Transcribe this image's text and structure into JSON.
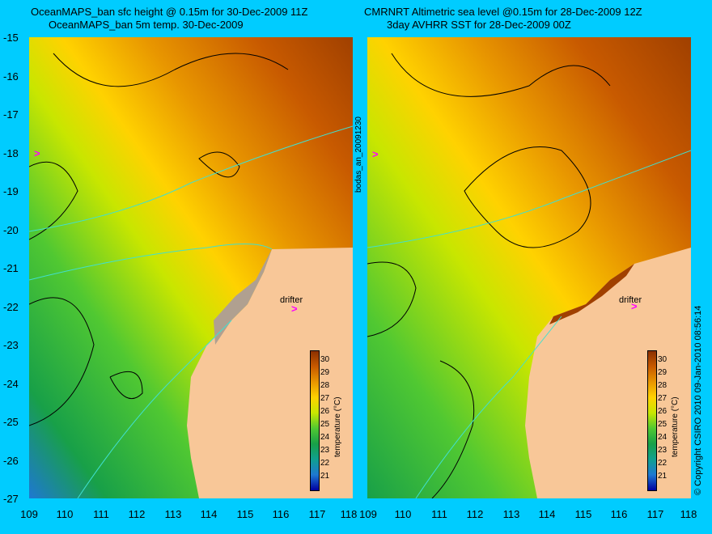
{
  "titles": {
    "left_line1": "OceanMAPS_ban sfc height @ 0.15m for 30-Dec-2009 11Z",
    "left_line2": "OceanMAPS_ban 5m temp. 30-Dec-2009",
    "right_line1": "CMRNRT Altimetric sea level  @0.15m  for 28-Dec-2009 12Z",
    "right_line2": "3day AVHRR SST for 28-Dec-2009 00Z"
  },
  "axes": {
    "y_ticks": [
      "-15",
      "-16",
      "-17",
      "-18",
      "-19",
      "-20",
      "-21",
      "-22",
      "-23",
      "-24",
      "-25",
      "-26",
      "-27"
    ],
    "x_ticks": [
      "109",
      "110",
      "111",
      "112",
      "113",
      "114",
      "115",
      "116",
      "117",
      "118"
    ],
    "lon_range": [
      109,
      118
    ],
    "lat_range": [
      -27,
      -15
    ]
  },
  "side_label": "bodas_an_20091230",
  "copyright": "© Copyright CSIRO 2010   09-Jan-2010 08:56:14",
  "drifter_label": "drifter",
  "colorbar": {
    "title": "temperature (°C)",
    "ticks": [
      "30",
      "29",
      "28",
      "27",
      "26",
      "25",
      "24",
      "23",
      "22",
      "21"
    ],
    "colors": [
      "#8b3000",
      "#c85a00",
      "#e89600",
      "#ffd200",
      "#c8e600",
      "#50c832",
      "#18a048",
      "#10a090",
      "#1e78d2",
      "#0000a0"
    ]
  },
  "colors": {
    "background": "#00ccff",
    "land": "#f8c798",
    "contour": "#000000",
    "isobath": "#40e0d0",
    "drifter": "#ff00ff"
  }
}
